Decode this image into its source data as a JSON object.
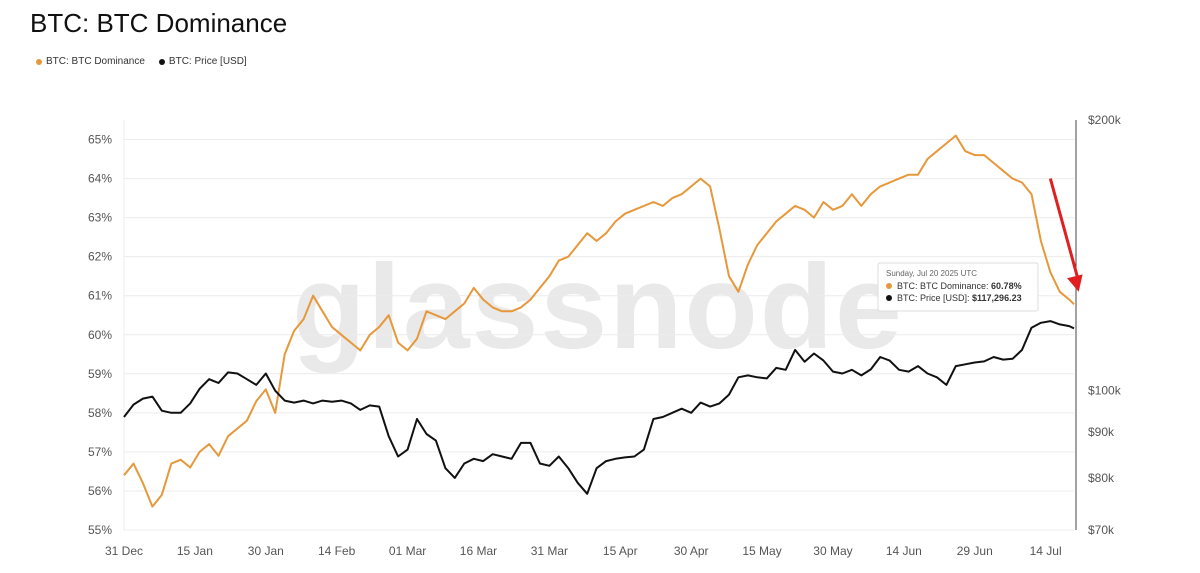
{
  "page": {
    "title": "BTC: BTC Dominance"
  },
  "legend": [
    {
      "label": "BTC: BTC Dominance",
      "color": "#E6983A"
    },
    {
      "label": "BTC: Price [USD]",
      "color": "#111111"
    }
  ],
  "watermark": "glassnode",
  "tooltip": {
    "date": "Sunday, Jul 20 2025 UTC",
    "dominance_label": "BTC: BTC Dominance:",
    "dominance_value": "60.78%",
    "price_label": "BTC: Price [USD]:",
    "price_value": "$117,296.23"
  },
  "chart_data": {
    "type": "line",
    "x_start": "2024-12-31",
    "x_ticks": [
      "31 Dec",
      "15 Jan",
      "30 Jan",
      "14 Feb",
      "01 Mar",
      "16 Mar",
      "31 Mar",
      "15 Apr",
      "30 Apr",
      "15 May",
      "30 May",
      "14 Jun",
      "29 Jun",
      "14 Jul"
    ],
    "y_left": {
      "ticks": [
        "55%",
        "56%",
        "57%",
        "58%",
        "59%",
        "60%",
        "61%",
        "62%",
        "63%",
        "64%",
        "65%"
      ],
      "range": [
        55,
        65.5
      ]
    },
    "y_right": {
      "scale": "log",
      "ticks": [
        "$70k",
        "$80k",
        "$90k",
        "$100k",
        "$200k"
      ],
      "range": [
        70000,
        200000
      ]
    },
    "grid": true,
    "legend_position": "top-left",
    "annotation": {
      "type": "arrow",
      "color": "#E02020",
      "from": [
        "2025-07-15",
        64.0
      ],
      "to": [
        "2025-07-21",
        61.1
      ]
    },
    "series": [
      {
        "name": "BTC: BTC Dominance",
        "axis": "left",
        "color": "#E6983A",
        "x": [
          "2024-12-31",
          "2025-01-02",
          "2025-01-04",
          "2025-01-06",
          "2025-01-08",
          "2025-01-10",
          "2025-01-12",
          "2025-01-14",
          "2025-01-16",
          "2025-01-18",
          "2025-01-20",
          "2025-01-22",
          "2025-01-24",
          "2025-01-26",
          "2025-01-28",
          "2025-01-30",
          "2025-02-01",
          "2025-02-03",
          "2025-02-05",
          "2025-02-07",
          "2025-02-09",
          "2025-02-11",
          "2025-02-13",
          "2025-02-15",
          "2025-02-17",
          "2025-02-19",
          "2025-02-21",
          "2025-02-23",
          "2025-02-25",
          "2025-02-27",
          "2025-03-01",
          "2025-03-03",
          "2025-03-05",
          "2025-03-07",
          "2025-03-09",
          "2025-03-11",
          "2025-03-13",
          "2025-03-15",
          "2025-03-17",
          "2025-03-19",
          "2025-03-21",
          "2025-03-23",
          "2025-03-25",
          "2025-03-27",
          "2025-03-29",
          "2025-03-31",
          "2025-04-02",
          "2025-04-04",
          "2025-04-06",
          "2025-04-08",
          "2025-04-10",
          "2025-04-12",
          "2025-04-14",
          "2025-04-16",
          "2025-04-18",
          "2025-04-20",
          "2025-04-22",
          "2025-04-24",
          "2025-04-26",
          "2025-04-28",
          "2025-04-30",
          "2025-05-02",
          "2025-05-04",
          "2025-05-06",
          "2025-05-08",
          "2025-05-10",
          "2025-05-12",
          "2025-05-14",
          "2025-05-16",
          "2025-05-18",
          "2025-05-20",
          "2025-05-22",
          "2025-05-24",
          "2025-05-26",
          "2025-05-28",
          "2025-05-30",
          "2025-06-01",
          "2025-06-03",
          "2025-06-05",
          "2025-06-07",
          "2025-06-09",
          "2025-06-11",
          "2025-06-13",
          "2025-06-15",
          "2025-06-17",
          "2025-06-19",
          "2025-06-21",
          "2025-06-23",
          "2025-06-25",
          "2025-06-27",
          "2025-06-29",
          "2025-07-01",
          "2025-07-03",
          "2025-07-05",
          "2025-07-07",
          "2025-07-09",
          "2025-07-11",
          "2025-07-13",
          "2025-07-15",
          "2025-07-17",
          "2025-07-19",
          "2025-07-20"
        ],
        "y": [
          56.4,
          56.7,
          56.2,
          55.6,
          55.9,
          56.7,
          56.8,
          56.6,
          57.0,
          57.2,
          56.9,
          57.4,
          57.6,
          57.8,
          58.3,
          58.6,
          58.0,
          59.5,
          60.1,
          60.4,
          61.0,
          60.6,
          60.2,
          60.0,
          59.8,
          59.6,
          60.0,
          60.2,
          60.5,
          59.8,
          59.6,
          59.9,
          60.6,
          60.5,
          60.4,
          60.6,
          60.8,
          61.2,
          60.9,
          60.7,
          60.6,
          60.6,
          60.7,
          60.9,
          61.2,
          61.5,
          61.9,
          62.0,
          62.3,
          62.6,
          62.4,
          62.6,
          62.9,
          63.1,
          63.2,
          63.3,
          63.4,
          63.3,
          63.5,
          63.6,
          63.8,
          64.0,
          63.8,
          62.7,
          61.5,
          61.1,
          61.8,
          62.3,
          62.6,
          62.9,
          63.1,
          63.3,
          63.2,
          63.0,
          63.4,
          63.2,
          63.3,
          63.6,
          63.3,
          63.6,
          63.8,
          63.9,
          64.0,
          64.1,
          64.1,
          64.5,
          64.7,
          64.9,
          65.1,
          64.7,
          64.6,
          64.6,
          64.4,
          64.2,
          64.0,
          63.9,
          63.6,
          62.4,
          61.6,
          61.1,
          60.9,
          60.78
        ]
      },
      {
        "name": "BTC: Price [USD]",
        "axis": "right",
        "color": "#111111",
        "x": [
          "2024-12-31",
          "2025-01-02",
          "2025-01-04",
          "2025-01-06",
          "2025-01-08",
          "2025-01-10",
          "2025-01-12",
          "2025-01-14",
          "2025-01-16",
          "2025-01-18",
          "2025-01-20",
          "2025-01-22",
          "2025-01-24",
          "2025-01-26",
          "2025-01-28",
          "2025-01-30",
          "2025-02-01",
          "2025-02-03",
          "2025-02-05",
          "2025-02-07",
          "2025-02-09",
          "2025-02-11",
          "2025-02-13",
          "2025-02-15",
          "2025-02-17",
          "2025-02-19",
          "2025-02-21",
          "2025-02-23",
          "2025-02-25",
          "2025-02-27",
          "2025-03-01",
          "2025-03-03",
          "2025-03-05",
          "2025-03-07",
          "2025-03-09",
          "2025-03-11",
          "2025-03-13",
          "2025-03-15",
          "2025-03-17",
          "2025-03-19",
          "2025-03-21",
          "2025-03-23",
          "2025-03-25",
          "2025-03-27",
          "2025-03-29",
          "2025-03-31",
          "2025-04-02",
          "2025-04-04",
          "2025-04-06",
          "2025-04-08",
          "2025-04-10",
          "2025-04-12",
          "2025-04-14",
          "2025-04-16",
          "2025-04-18",
          "2025-04-20",
          "2025-04-22",
          "2025-04-24",
          "2025-04-26",
          "2025-04-28",
          "2025-04-30",
          "2025-05-02",
          "2025-05-04",
          "2025-05-06",
          "2025-05-08",
          "2025-05-10",
          "2025-05-12",
          "2025-05-14",
          "2025-05-16",
          "2025-05-18",
          "2025-05-20",
          "2025-05-22",
          "2025-05-24",
          "2025-05-26",
          "2025-05-28",
          "2025-05-30",
          "2025-06-01",
          "2025-06-03",
          "2025-06-05",
          "2025-06-07",
          "2025-06-09",
          "2025-06-11",
          "2025-06-13",
          "2025-06-15",
          "2025-06-17",
          "2025-06-19",
          "2025-06-21",
          "2025-06-23",
          "2025-06-25",
          "2025-06-27",
          "2025-06-29",
          "2025-07-01",
          "2025-07-03",
          "2025-07-05",
          "2025-07-07",
          "2025-07-09",
          "2025-07-11",
          "2025-07-13",
          "2025-07-15",
          "2025-07-17",
          "2025-07-19",
          "2025-07-20"
        ],
        "y": [
          93500,
          96500,
          98000,
          98500,
          95000,
          94500,
          94500,
          96800,
          100500,
          103000,
          102000,
          104800,
          104500,
          103000,
          101500,
          104500,
          100000,
          97500,
          97000,
          97500,
          96800,
          97500,
          97200,
          97500,
          96800,
          95200,
          96300,
          96000,
          89000,
          84500,
          86000,
          93000,
          89500,
          88000,
          82000,
          80000,
          83000,
          84000,
          83500,
          85000,
          84500,
          84000,
          87500,
          87500,
          83000,
          82500,
          84500,
          82000,
          79000,
          76800,
          82000,
          83500,
          84000,
          84300,
          84500,
          86000,
          93000,
          93500,
          94500,
          95500,
          94500,
          97000,
          96000,
          96800,
          99000,
          103500,
          104000,
          103500,
          103200,
          106000,
          105500,
          111000,
          107700,
          110000,
          108000,
          105000,
          104500,
          105500,
          104000,
          105600,
          109000,
          108000,
          105500,
          105000,
          106500,
          104500,
          103500,
          101500,
          106500,
          107000,
          107500,
          107800,
          109000,
          108300,
          108500,
          111000,
          117500,
          119000,
          119500,
          118500,
          118000,
          117296
        ]
      }
    ]
  }
}
